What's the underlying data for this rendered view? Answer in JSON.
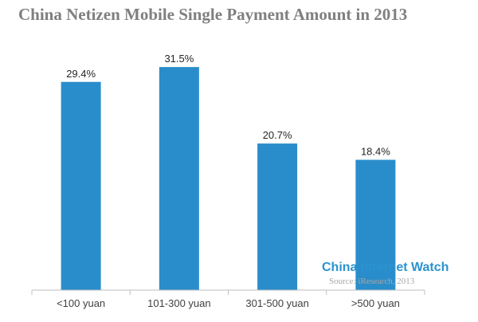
{
  "chart_data": {
    "type": "bar",
    "title": "China Netizen Mobile Single Payment Amount in 2013",
    "categories": [
      "<100 yuan",
      "101-300 yuan",
      "301-500 yuan",
      ">500 yuan"
    ],
    "values": [
      29.4,
      31.5,
      20.7,
      18.4
    ],
    "value_labels": [
      "29.4%",
      "31.5%",
      "20.7%",
      "18.4%"
    ],
    "ylim": [
      0,
      35
    ],
    "xlabel": "",
    "ylabel": "",
    "grid": false,
    "bar_color": "#2a8dcb"
  },
  "watermark": {
    "brand": "China Internet Watch",
    "source": "Source: iResearch, 2013"
  }
}
